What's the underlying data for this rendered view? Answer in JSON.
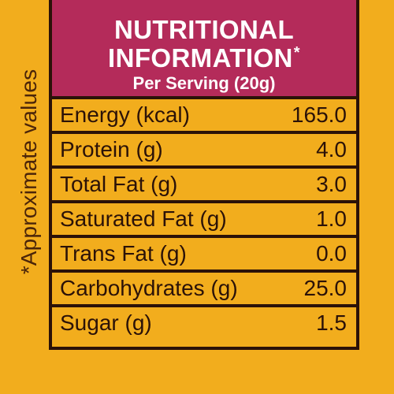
{
  "side_note": "*Approximate values",
  "header": {
    "title_line1": "NUTRITIONAL",
    "title_line2": "INFORMATION",
    "asterisk": "*",
    "subtitle": "Per Serving (20g)"
  },
  "rows": [
    {
      "label": "Energy (kcal)",
      "value": "165.0"
    },
    {
      "label": "Protein (g)",
      "value": "4.0"
    },
    {
      "label": "Total Fat (g)",
      "value": "3.0"
    },
    {
      "label": "Saturated Fat (g)",
      "value": "1.0"
    },
    {
      "label": "Trans Fat (g)",
      "value": "0.0"
    },
    {
      "label": "Carbohydrates (g)",
      "value": "25.0"
    },
    {
      "label": "Sugar (g)",
      "value": "1.5"
    }
  ],
  "colors": {
    "background": "#f2ad1d",
    "header": "#b42b5a",
    "border": "#2b1208",
    "text": "#2b1208",
    "header_text": "#ffffff"
  }
}
